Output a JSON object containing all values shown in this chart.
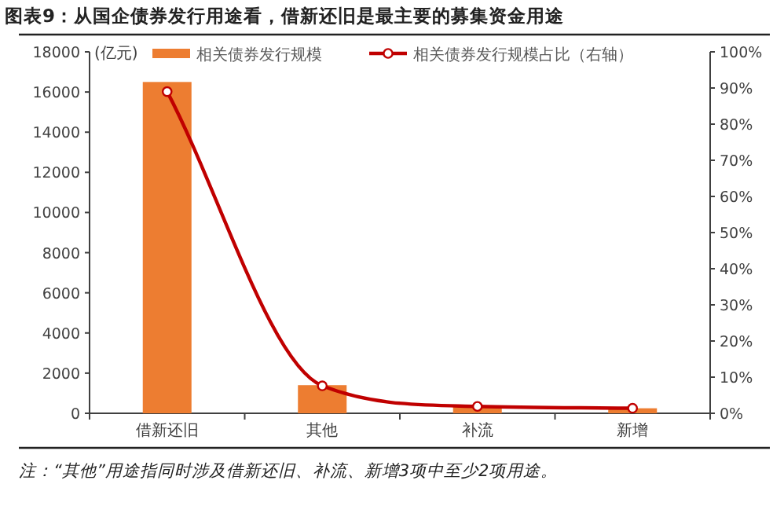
{
  "chart_data": {
    "type": "bar",
    "title": "图表9：从国企债券发行用途看，借新还旧是最主要的募集资金用途",
    "ylabel": "(亿元)",
    "categories": [
      "借新还旧",
      "其他",
      "补流",
      "新增"
    ],
    "series": [
      {
        "name": "相关债券发行规模",
        "color": "#ed7d31",
        "values": [
          16500,
          1400,
          350,
          250
        ]
      },
      {
        "name": "相关债券发行规模占比（右轴）",
        "type": "line",
        "axis": "y2",
        "color": "#c00000",
        "values": [
          89,
          7.6,
          1.9,
          1.4
        ]
      }
    ],
    "ylim": [
      0,
      18000
    ],
    "yticks": [
      0,
      2000,
      4000,
      6000,
      8000,
      10000,
      12000,
      14000,
      16000,
      18000
    ],
    "y2lim": [
      0,
      100
    ],
    "y2ticks": [
      {
        "value": 0,
        "label": "0%"
      },
      {
        "value": 10,
        "label": "10%"
      },
      {
        "value": 20,
        "label": "20%"
      },
      {
        "value": 30,
        "label": "30%"
      },
      {
        "value": 40,
        "label": "40%"
      },
      {
        "value": 50,
        "label": "50%"
      },
      {
        "value": 60,
        "label": "60%"
      },
      {
        "value": 70,
        "label": "70%"
      },
      {
        "value": 80,
        "label": "80%"
      },
      {
        "value": 90,
        "label": "90%"
      },
      {
        "value": 100,
        "label": "100%"
      }
    ],
    "legend": "top",
    "marker": "circle",
    "annotations": [
      "注：“其他”用途指同时涉及借新还旧、补流、新增3项中至少2项用途。"
    ]
  }
}
